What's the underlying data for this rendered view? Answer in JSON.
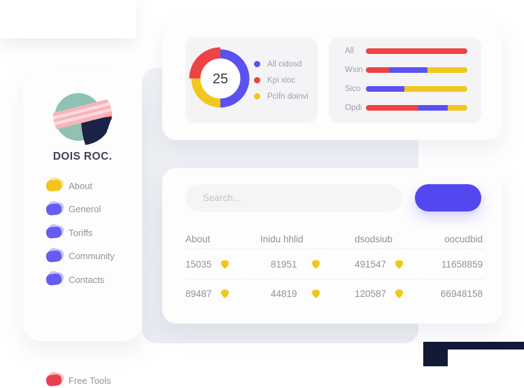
{
  "colors": {
    "blue": "#5b50f0",
    "red": "#ee4245",
    "yellow": "#f1c71d",
    "button_blue": "#5348ef",
    "navy_corner": "#121a35"
  },
  "sidebar": {
    "brand": "DOIS ROC.",
    "items": [
      {
        "label": "About",
        "color": "#f0c51c",
        "shadow": "#f2d35a"
      },
      {
        "label": "Generol",
        "color": "#655df2",
        "shadow": "#9a94f7"
      },
      {
        "label": "Toriffs",
        "color": "#655df2",
        "shadow": "#9a94f7"
      },
      {
        "label": "Community",
        "color": "#655df2",
        "shadow": "#9a94f7"
      },
      {
        "label": "Contacts",
        "color": "#655df2",
        "shadow": "#9a94f7"
      }
    ],
    "footer_item": {
      "label": "Free Tools",
      "color": "#e9404d",
      "shadow": "#f28d93"
    }
  },
  "donut_card": {
    "value": "25",
    "legend": [
      {
        "label": "All cidosd",
        "color": "#5b50f0"
      },
      {
        "label": "Kpi xioc",
        "color": "#ee4245"
      },
      {
        "label": "Pcifn doinvi",
        "color": "#f1c71d"
      }
    ]
  },
  "bars_card": {
    "rows": [
      {
        "label": "All",
        "segments": [
          {
            "color": "#ee4245",
            "pct": 100
          }
        ]
      },
      {
        "label": "Wxin",
        "segments": [
          {
            "color": "#ee4245",
            "pct": 23
          },
          {
            "color": "#5b50f0",
            "pct": 38
          },
          {
            "color": "#f1c71d",
            "pct": 39
          }
        ]
      },
      {
        "label": "Sico",
        "segments": [
          {
            "color": "#5b50f0",
            "pct": 38
          },
          {
            "color": "#f1c71d",
            "pct": 62
          }
        ]
      },
      {
        "label": "Opdi",
        "segments": [
          {
            "color": "#ee4245",
            "pct": 52
          },
          {
            "color": "#5b50f0",
            "pct": 29
          },
          {
            "color": "#f1c71d",
            "pct": 19
          }
        ]
      }
    ]
  },
  "table_card": {
    "search_placeholder": "Search...",
    "headers": [
      "About",
      "Inidu hhlid",
      "dsodsiub",
      "oocudbid"
    ],
    "rows": [
      {
        "cells": [
          {
            "value": "15035",
            "badge": true
          },
          {
            "value": "81951",
            "badge": true
          },
          {
            "value": "491547",
            "badge": true
          },
          {
            "value": "11658859",
            "badge": false
          }
        ]
      },
      {
        "cells": [
          {
            "value": "89487",
            "badge": true
          },
          {
            "value": "44819",
            "badge": true
          },
          {
            "value": "120587",
            "badge": true
          },
          {
            "value": "66948158",
            "badge": false
          }
        ]
      }
    ]
  },
  "chart_data": [
    {
      "type": "pie",
      "donut": true,
      "center_label": "25",
      "labels": [
        "All cidosd",
        "Kpi xioc",
        "Pcifn doinvi"
      ],
      "values": [
        50,
        25,
        25
      ],
      "colors": [
        "#5b50f0",
        "#ee4245",
        "#f1c71d"
      ],
      "legend_position": "right"
    },
    {
      "type": "bar",
      "orientation": "horizontal",
      "stacked": true,
      "categories": [
        "All",
        "Wxin",
        "Sico",
        "Opdi"
      ],
      "series": [
        {
          "name": "red",
          "color": "#ee4245",
          "values": [
            100,
            23,
            0,
            52
          ]
        },
        {
          "name": "blue",
          "color": "#5b50f0",
          "values": [
            0,
            38,
            38,
            29
          ]
        },
        {
          "name": "yellow",
          "color": "#f1c71d",
          "values": [
            0,
            39,
            62,
            19
          ]
        }
      ],
      "unit": "percent",
      "xlim": [
        0,
        100
      ],
      "grid": false
    }
  ]
}
